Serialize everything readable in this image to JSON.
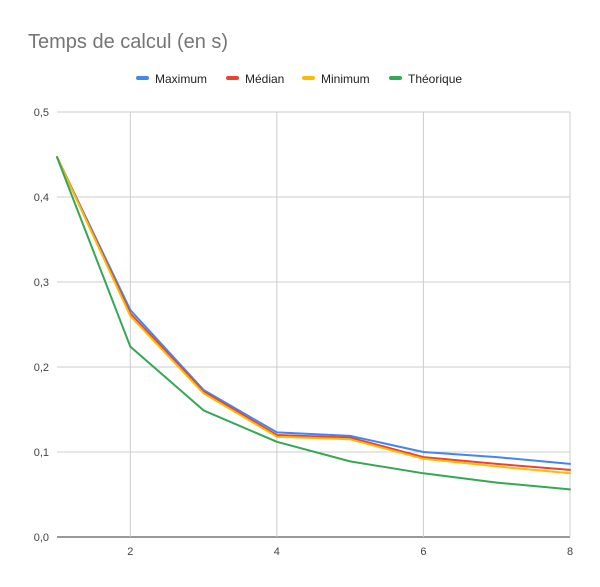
{
  "chart_data": {
    "type": "line",
    "title": "Temps de calcul (en s)",
    "xlabel": "",
    "ylabel": "",
    "x": [
      1,
      2,
      3,
      4,
      5,
      6,
      7,
      8
    ],
    "xlim": [
      1,
      8
    ],
    "xticks": [
      2,
      4,
      6,
      8
    ],
    "ylim": [
      0,
      0.5
    ],
    "yticks": [
      "0,0",
      "0,1",
      "0,2",
      "0,3",
      "0,4",
      "0,5"
    ],
    "grid": true,
    "legend_position": "top-center",
    "series": [
      {
        "name": "Maximum",
        "color": "#4285f4",
        "values": [
          0.447,
          0.267,
          0.173,
          0.123,
          0.119,
          0.1,
          0.094,
          0.086
        ]
      },
      {
        "name": "Médian",
        "color": "#ea4335",
        "values": [
          0.447,
          0.263,
          0.171,
          0.12,
          0.117,
          0.094,
          0.086,
          0.079
        ]
      },
      {
        "name": "Minimum",
        "color": "#fbbc04",
        "values": [
          0.447,
          0.26,
          0.169,
          0.118,
          0.115,
          0.092,
          0.083,
          0.075
        ]
      },
      {
        "name": "Théorique",
        "color": "#34a853",
        "values": [
          0.447,
          0.224,
          0.149,
          0.112,
          0.089,
          0.075,
          0.064,
          0.056
        ]
      }
    ]
  }
}
